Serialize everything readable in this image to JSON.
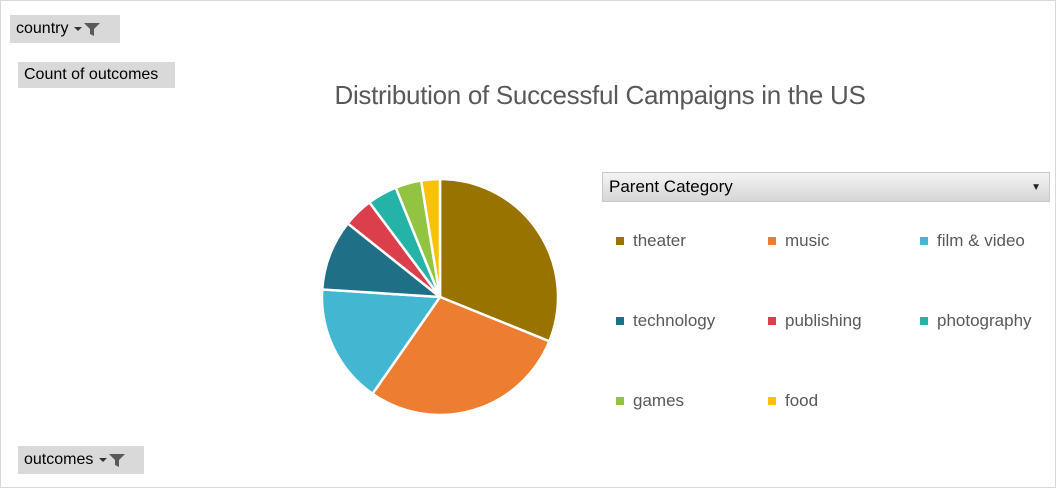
{
  "filters": {
    "country_label": "country",
    "values_label": "Count of outcomes",
    "outcomes_label": "outcomes"
  },
  "icons": {
    "filter": "filter-funnel-icon",
    "dropdown": "chevron-down-icon"
  },
  "legend": {
    "title": "Parent Category"
  },
  "chart_data": {
    "type": "pie",
    "title": "Distribution of Successful Campaigns in the US",
    "categories": [
      "theater",
      "music",
      "film & video",
      "technology",
      "publishing",
      "photography",
      "games",
      "food"
    ],
    "values": [
      30.5,
      28.0,
      16.0,
      9.5,
      4.0,
      4.0,
      3.5,
      2.5
    ],
    "colors": [
      "#997300",
      "#ED7D31",
      "#43B6D1",
      "#1F6F86",
      "#DB3F4B",
      "#26B3A7",
      "#93C441",
      "#F9C208"
    ],
    "legend_position": "right"
  }
}
